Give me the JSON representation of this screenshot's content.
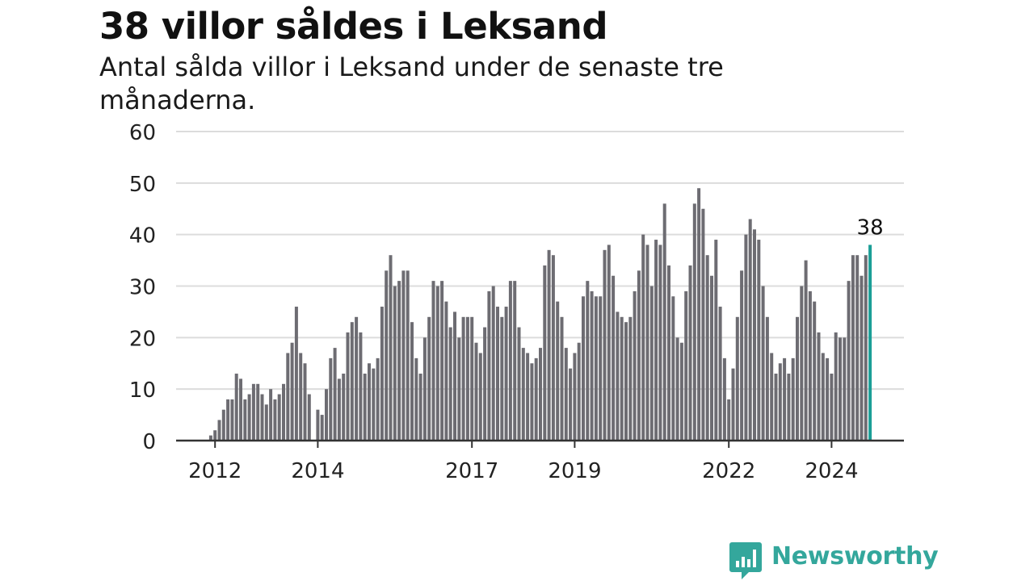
{
  "title": "38 villor såldes i Leksand",
  "subtitle": "Antal sålda villor i Leksand under de senaste tre månaderna.",
  "brand": {
    "name": "Newsworthy",
    "color": "#34a79c",
    "icon": "bar-chart-speech-bubble-icon"
  },
  "chart_data": {
    "type": "bar",
    "title": "38 villor såldes i Leksand",
    "subtitle": "Antal sålda villor i Leksand under de senaste tre månaderna.",
    "xlabel": "",
    "ylabel": "",
    "ylim": [
      0,
      60
    ],
    "yticks": [
      0,
      10,
      20,
      30,
      40,
      50,
      60
    ],
    "xticks": [
      {
        "label": "2012",
        "index": 1
      },
      {
        "label": "2014",
        "index": 25
      },
      {
        "label": "2017",
        "index": 61
      },
      {
        "label": "2019",
        "index": 85
      },
      {
        "label": "2022",
        "index": 121
      },
      {
        "label": "2024",
        "index": 145
      }
    ],
    "grid": true,
    "bar_color": "#6d6c72",
    "highlight_color": "#1b9e97",
    "highlight_label": "38",
    "values": [
      1,
      2,
      4,
      6,
      8,
      8,
      13,
      12,
      8,
      9,
      11,
      11,
      9,
      7,
      10,
      8,
      9,
      11,
      17,
      19,
      26,
      17,
      15,
      9,
      0,
      6,
      5,
      10,
      16,
      18,
      12,
      13,
      21,
      23,
      24,
      21,
      13,
      15,
      14,
      16,
      26,
      33,
      36,
      30,
      31,
      33,
      33,
      23,
      16,
      13,
      20,
      24,
      31,
      30,
      31,
      27,
      22,
      25,
      20,
      24,
      24,
      24,
      19,
      17,
      22,
      29,
      30,
      26,
      24,
      26,
      31,
      31,
      22,
      18,
      17,
      15,
      16,
      18,
      34,
      37,
      36,
      27,
      24,
      18,
      14,
      17,
      19,
      28,
      31,
      29,
      28,
      28,
      37,
      38,
      32,
      25,
      24,
      23,
      24,
      29,
      33,
      40,
      38,
      30,
      39,
      38,
      46,
      34,
      28,
      20,
      19,
      29,
      34,
      46,
      49,
      45,
      36,
      32,
      39,
      26,
      16,
      8,
      14,
      24,
      33,
      40,
      43,
      41,
      39,
      30,
      24,
      17,
      13,
      15,
      16,
      13,
      16,
      24,
      30,
      35,
      29,
      27,
      21,
      17,
      16,
      13,
      21,
      20,
      20,
      31,
      36,
      36,
      32,
      36,
      38
    ]
  }
}
